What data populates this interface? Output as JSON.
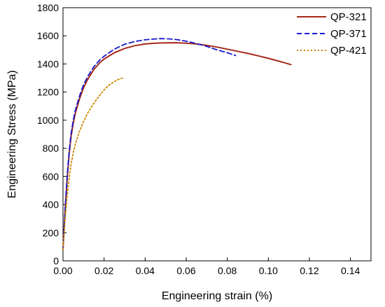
{
  "chart_data": {
    "type": "line",
    "xlabel": "Engineering strain (%)",
    "ylabel": "Engineering Stress (MPa)",
    "xlim": [
      0,
      0.15
    ],
    "ylim": [
      0,
      1800
    ],
    "xticks": [
      "0.00",
      "0.02",
      "0.04",
      "0.06",
      "0.08",
      "0.10",
      "0.12",
      "0.14"
    ],
    "yticks": [
      "0",
      "200",
      "400",
      "600",
      "800",
      "1000",
      "1200",
      "1400",
      "1600",
      "1800"
    ],
    "legend_position": "top-right",
    "grid": false,
    "series": [
      {
        "name": "QP-321",
        "color": "#a52a1a",
        "style": "solid",
        "x": [
          0,
          0.001,
          0.002,
          0.003,
          0.004,
          0.005,
          0.006,
          0.008,
          0.01,
          0.012,
          0.015,
          0.018,
          0.02,
          0.025,
          0.03,
          0.035,
          0.04,
          0.045,
          0.05,
          0.055,
          0.06,
          0.065,
          0.07,
          0.075,
          0.08,
          0.085,
          0.09,
          0.095,
          0.1,
          0.105,
          0.108,
          0.111
        ],
        "y": [
          80,
          350,
          580,
          760,
          890,
          980,
          1050,
          1150,
          1230,
          1290,
          1360,
          1410,
          1435,
          1480,
          1510,
          1530,
          1542,
          1548,
          1550,
          1551,
          1548,
          1542,
          1532,
          1520,
          1505,
          1490,
          1475,
          1458,
          1440,
          1420,
          1408,
          1395
        ]
      },
      {
        "name": "QP-371",
        "color": "#1a1acc",
        "style": "dashed",
        "x": [
          0,
          0.001,
          0.002,
          0.003,
          0.004,
          0.005,
          0.006,
          0.008,
          0.01,
          0.012,
          0.015,
          0.018,
          0.02,
          0.025,
          0.03,
          0.035,
          0.04,
          0.045,
          0.048,
          0.052,
          0.056,
          0.06,
          0.065,
          0.07,
          0.075,
          0.08,
          0.084
        ],
        "y": [
          80,
          360,
          600,
          780,
          910,
          1000,
          1070,
          1170,
          1250,
          1310,
          1380,
          1430,
          1455,
          1505,
          1540,
          1560,
          1572,
          1578,
          1580,
          1578,
          1572,
          1562,
          1545,
          1525,
          1500,
          1480,
          1460
        ]
      },
      {
        "name": "QP-421",
        "color": "#cc8800",
        "style": "dotted",
        "x": [
          0,
          0.001,
          0.002,
          0.003,
          0.004,
          0.005,
          0.006,
          0.008,
          0.01,
          0.012,
          0.015,
          0.018,
          0.02,
          0.022,
          0.025,
          0.027,
          0.029
        ],
        "y": [
          80,
          290,
          460,
          590,
          690,
          770,
          830,
          920,
          990,
          1050,
          1120,
          1180,
          1215,
          1245,
          1275,
          1290,
          1300
        ]
      }
    ]
  }
}
